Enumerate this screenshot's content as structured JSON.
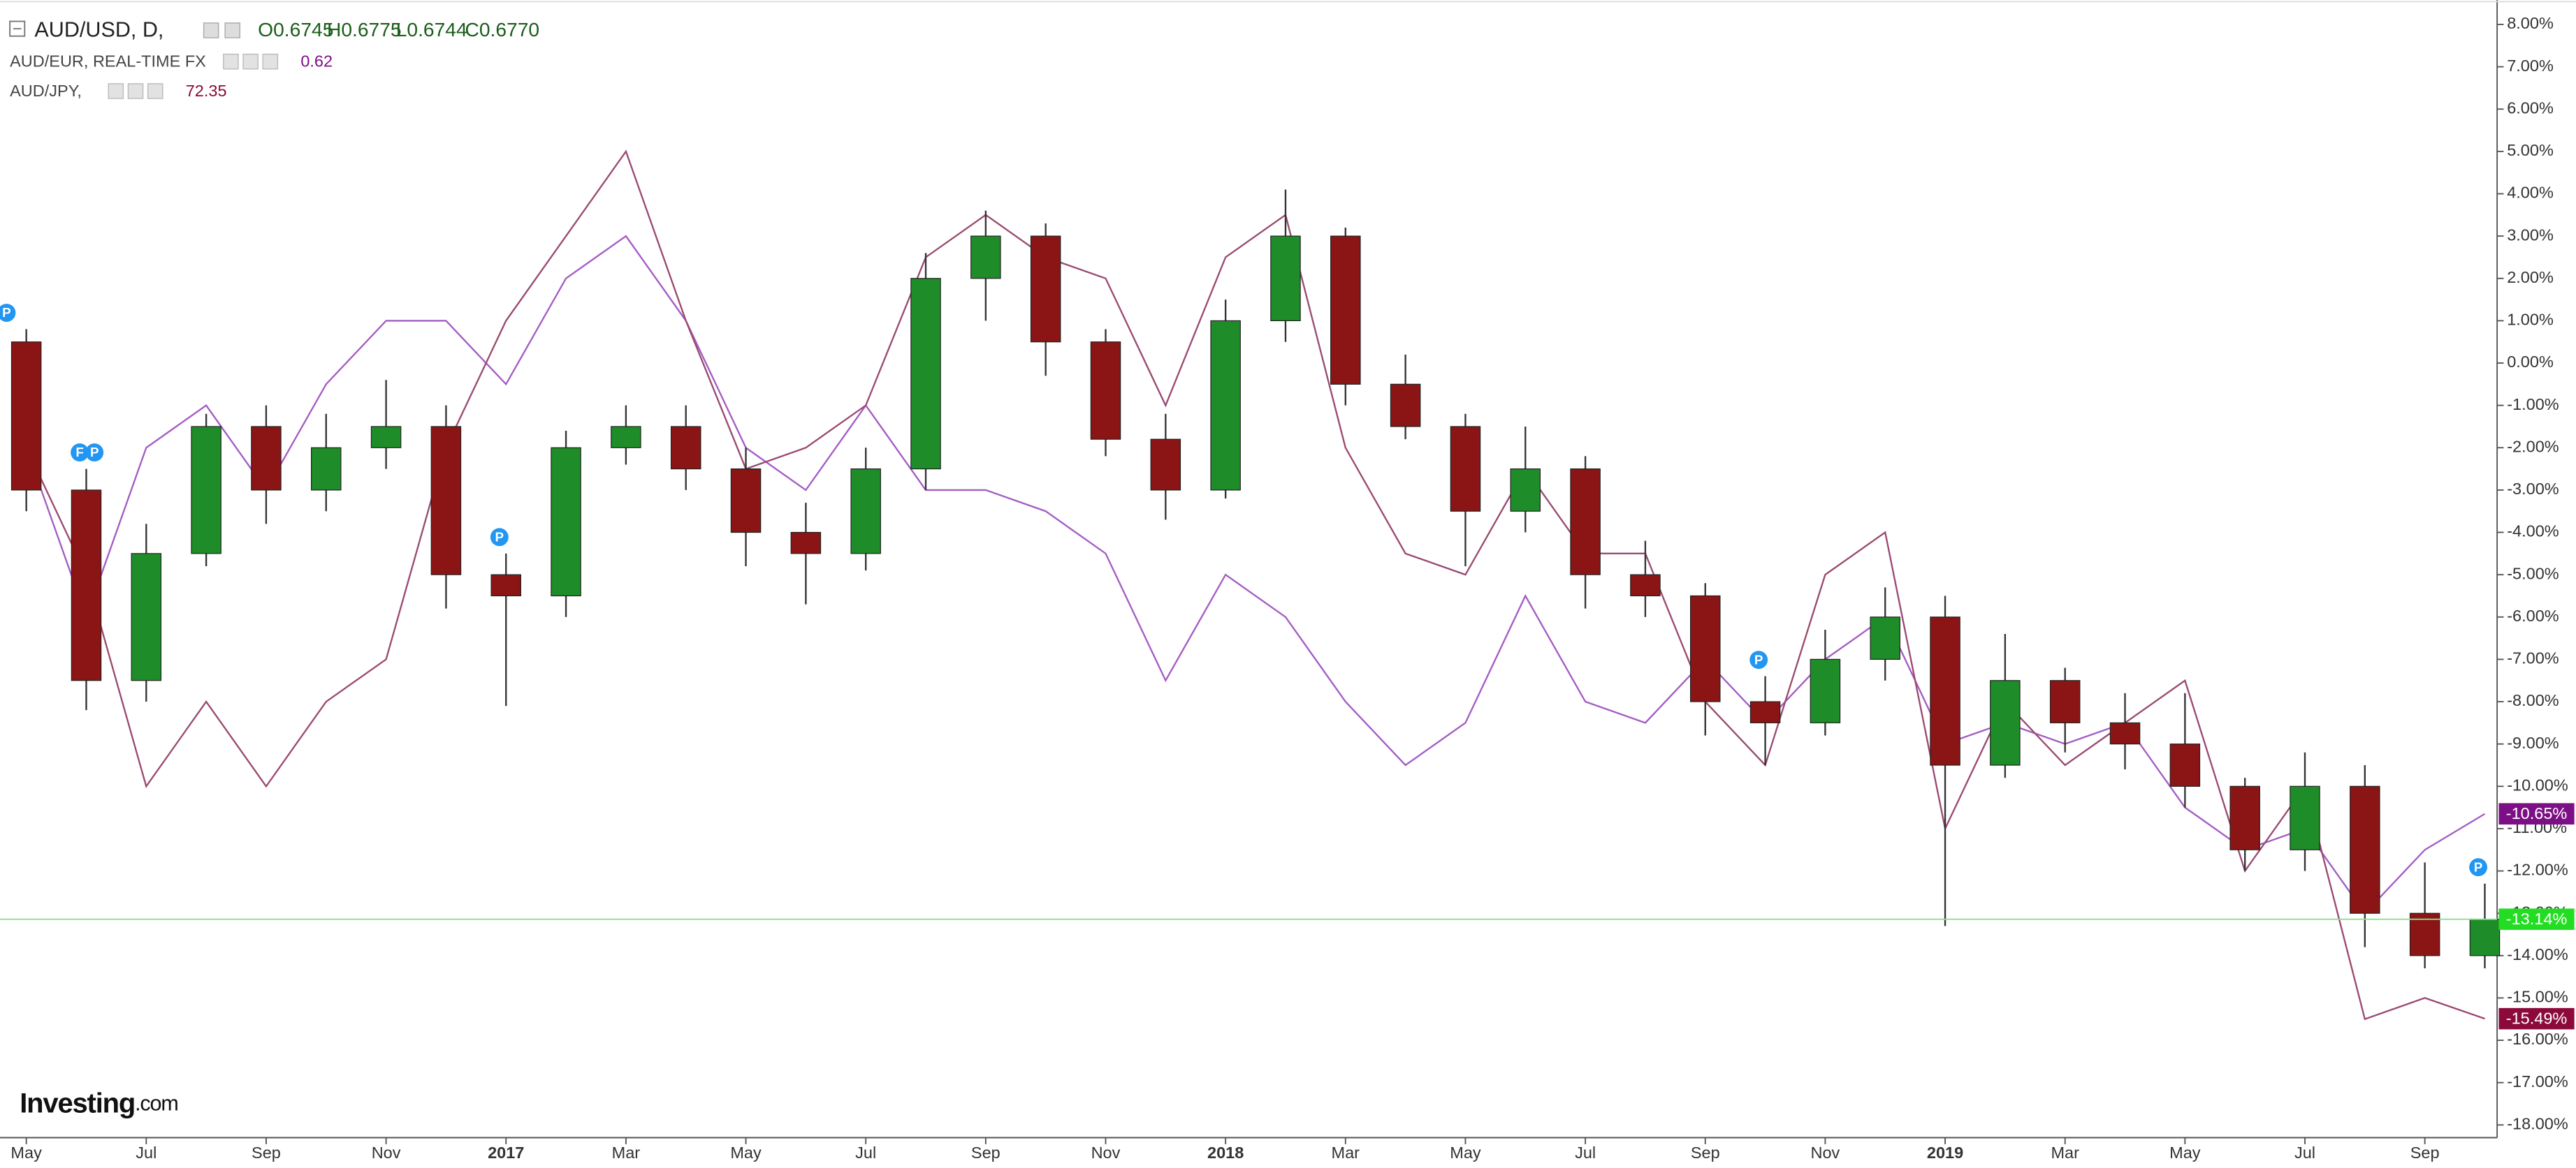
{
  "chart_data": {
    "type": "candlestick",
    "title": "AUD/USD, D,",
    "ohlc_labels": [
      "O0.6745",
      "H0.6775",
      "L0.6744",
      "C0.6770"
    ],
    "categories": [
      "May",
      null,
      "Jul",
      null,
      "Sep",
      null,
      "Nov",
      null,
      "2017",
      null,
      "Mar",
      null,
      "May",
      null,
      "Jul",
      null,
      "Sep",
      null,
      "Nov",
      null,
      "2018",
      null,
      "Mar",
      null,
      "May",
      null,
      "Jul",
      null,
      "Sep",
      null,
      "Nov",
      null,
      "2019",
      null,
      "Mar",
      null,
      "May",
      null,
      "Jul",
      null,
      "Sep",
      null
    ],
    "open": [
      0.5,
      -3,
      -7.5,
      -4.5,
      -1.5,
      -3,
      -2,
      -1.5,
      -5,
      -5.5,
      -2,
      -1.5,
      -2.5,
      -4,
      -4.5,
      -2.5,
      2,
      3,
      0.5,
      -1.8,
      -3,
      1,
      3,
      -0.5,
      -1.5,
      -3.5,
      -2.5,
      -5,
      -5.5,
      -8,
      -8.5,
      -7,
      -6,
      -9.5,
      -7.5,
      -8.5,
      -9,
      -10,
      -11.5,
      -10,
      -13,
      -14
    ],
    "high": [
      0.8,
      -2.5,
      -3.8,
      -1.2,
      -1,
      -1.2,
      -0.4,
      -1,
      -4.5,
      -1.6,
      -1,
      -1,
      -2,
      -3.3,
      -2,
      2.6,
      3.6,
      3.3,
      0.8,
      -1.2,
      1.5,
      4.1,
      3.2,
      0.2,
      -1.2,
      -1.5,
      -2.2,
      -4.2,
      -5.2,
      -7.4,
      -6.3,
      -5.3,
      -5.5,
      -6.4,
      -7.2,
      -7.8,
      -7.8,
      -9.8,
      -9.2,
      -9.5,
      -11.8,
      -12.3
    ],
    "low": [
      -3.5,
      -8.2,
      -8,
      -4.8,
      -3.8,
      -3.5,
      -2.5,
      -5.8,
      -8.1,
      -6,
      -2.4,
      -3,
      -4.8,
      -5.7,
      -4.9,
      -3,
      1,
      -0.3,
      -2.2,
      -3.7,
      -3.2,
      0.5,
      -1,
      -1.8,
      -4.8,
      -4,
      -5.8,
      -6,
      -8.8,
      -9.5,
      -8.8,
      -7.5,
      -13.3,
      -9.8,
      -9.2,
      -9.6,
      -10.5,
      -12,
      -12,
      -13.8,
      -14.3,
      -14.3
    ],
    "close": [
      -3,
      -7.5,
      -4.5,
      -1.5,
      -3,
      -2,
      -1.5,
      -5,
      -5.5,
      -2,
      -1.5,
      -2.5,
      -4,
      -4.5,
      -2.5,
      2,
      3,
      0.5,
      -1.8,
      -3,
      1,
      3,
      -0.5,
      -1.5,
      -3.5,
      -2.5,
      -5,
      -5.5,
      -8,
      -8.5,
      -7,
      -6,
      -9.5,
      -7.5,
      -8.5,
      -9,
      -10,
      -11.5,
      -10,
      -13,
      -14,
      -13.14
    ],
    "up_color": "#1e8c28",
    "down_color": "#8b1414",
    "last_label": "-13.14%",
    "last_color": "#22dd22",
    "overlays": [
      {
        "name": "AUD/EUR, REAL-TIME FX",
        "quote": "0.62",
        "color": "#a45cc4",
        "badge_color": "#7d0f86",
        "last_label": "-10.65%",
        "values": [
          -2,
          -6,
          -2,
          -1,
          -3,
          -0.5,
          1,
          1,
          -0.5,
          2,
          3,
          1,
          -2,
          -3,
          -1,
          -3,
          -3,
          -3.5,
          -4.5,
          -7.5,
          -5,
          -6,
          -8,
          -9.5,
          -8.5,
          -5.5,
          -8,
          -8.5,
          -7,
          -8.5,
          -7,
          -6,
          -9,
          -8.5,
          -9,
          -8.5,
          -10.5,
          -11.5,
          -11,
          -13,
          -11.5,
          -10.65
        ]
      },
      {
        "name": "AUD/JPY,",
        "quote": "72.35",
        "color": "#9a4a72",
        "badge_color": "#8b0a3a",
        "last_label": "-15.49%",
        "values": [
          -2,
          -5,
          -10,
          -8,
          -10,
          -8,
          -7,
          -2,
          1,
          3,
          5,
          1,
          -2.5,
          -2,
          -1,
          2.5,
          3.5,
          2.5,
          2,
          -1,
          2.5,
          3.5,
          -2,
          -4.5,
          -5,
          -2.5,
          -4.5,
          -4.5,
          -8,
          -9.5,
          -5,
          -4,
          -11,
          -8,
          -9.5,
          -8.5,
          -7.5,
          -12,
          -10,
          -15.5,
          -15,
          -15.49
        ]
      }
    ],
    "ylim": [
      -18.3,
      8.5
    ],
    "yticks": [
      {
        "value": 8,
        "label": "8.00%"
      },
      {
        "value": 7,
        "label": "7.00%"
      },
      {
        "value": 6,
        "label": "6.00%"
      },
      {
        "value": 5,
        "label": "5.00%"
      },
      {
        "value": 4,
        "label": "4.00%"
      },
      {
        "value": 3,
        "label": "3.00%"
      },
      {
        "value": 2,
        "label": "2.00%"
      },
      {
        "value": 1,
        "label": "1.00%"
      },
      {
        "value": 0,
        "label": "0.00%"
      },
      {
        "value": -1,
        "label": "-1.00%"
      },
      {
        "value": -2,
        "label": "-2.00%"
      },
      {
        "value": -3,
        "label": "-3.00%"
      },
      {
        "value": -4,
        "label": "-4.00%"
      },
      {
        "value": -5,
        "label": "-5.00%"
      },
      {
        "value": -6,
        "label": "-6.00%"
      },
      {
        "value": -7,
        "label": "-7.00%"
      },
      {
        "value": -8,
        "label": "-8.00%"
      },
      {
        "value": -9,
        "label": "-9.00%"
      },
      {
        "value": -10,
        "label": "-10.00%"
      },
      {
        "value": -11,
        "label": "-11.00%"
      },
      {
        "value": -12,
        "label": "-12.00%"
      },
      {
        "value": -13,
        "label": "-13.00%"
      },
      {
        "value": -14,
        "label": "-14.00%"
      },
      {
        "value": -15,
        "label": "-15.00%"
      },
      {
        "value": -16,
        "label": "-16.00%"
      },
      {
        "value": -17,
        "label": "-17.00%"
      },
      {
        "value": -18,
        "label": "-18.00%"
      }
    ],
    "events": [
      {
        "label": "P",
        "at": 0
      },
      {
        "label": "F",
        "at": 1
      },
      {
        "label": "P",
        "at": 1
      },
      {
        "label": "P",
        "at": 8
      },
      {
        "label": "P",
        "at": 29
      },
      {
        "label": "P",
        "at": 41
      }
    ],
    "brand": [
      "Investing",
      ".com"
    ]
  }
}
